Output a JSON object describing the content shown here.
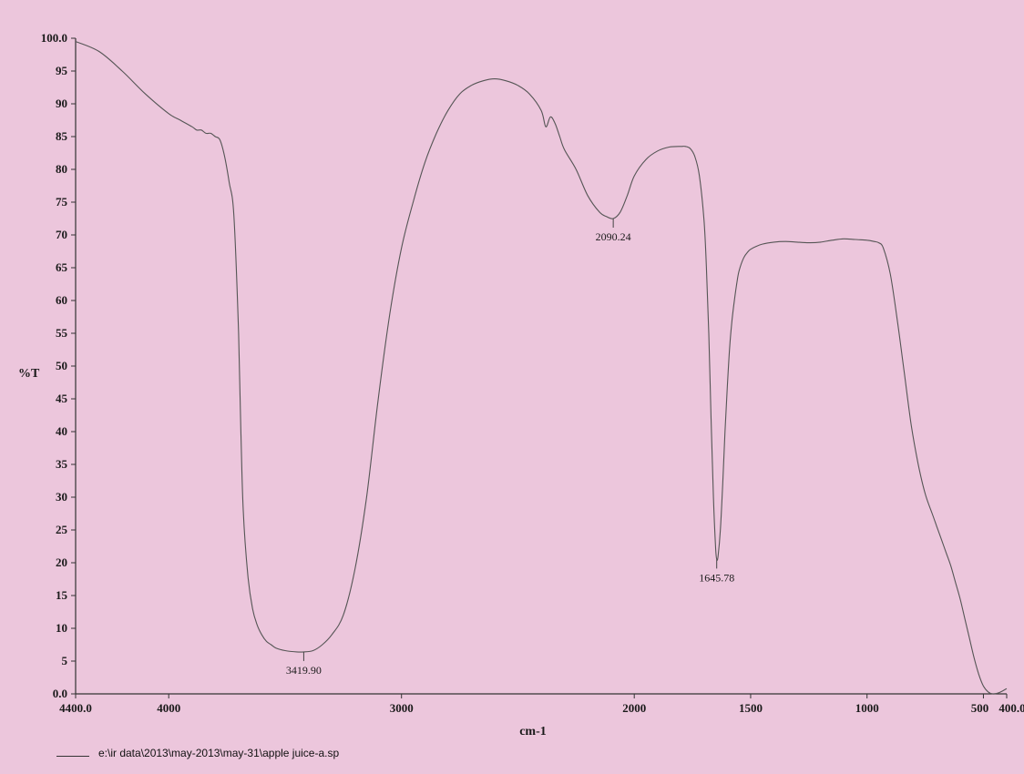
{
  "chart_data": {
    "type": "line",
    "title": "",
    "xlabel": "cm-1",
    "ylabel": "%T",
    "xlim": [
      4400.0,
      400.0
    ],
    "ylim": [
      0.0,
      100.0
    ],
    "x_reversed": true,
    "grid": false,
    "x_ticks": [
      {
        "value": 4400,
        "label": "4400.0"
      },
      {
        "value": 4000,
        "label": "4000"
      },
      {
        "value": 3000,
        "label": "3000"
      },
      {
        "value": 2000,
        "label": "2000"
      },
      {
        "value": 1500,
        "label": "1500"
      },
      {
        "value": 1000,
        "label": "1000"
      },
      {
        "value": 500,
        "label": "500"
      },
      {
        "value": 400,
        "label": "400.0"
      }
    ],
    "y_ticks": [
      {
        "value": 0,
        "label": "0.0"
      },
      {
        "value": 5,
        "label": "5"
      },
      {
        "value": 10,
        "label": "10"
      },
      {
        "value": 15,
        "label": "15"
      },
      {
        "value": 20,
        "label": "20"
      },
      {
        "value": 25,
        "label": "25"
      },
      {
        "value": 30,
        "label": "30"
      },
      {
        "value": 35,
        "label": "35"
      },
      {
        "value": 40,
        "label": "40"
      },
      {
        "value": 45,
        "label": "45"
      },
      {
        "value": 50,
        "label": "50"
      },
      {
        "value": 55,
        "label": "55"
      },
      {
        "value": 60,
        "label": "60"
      },
      {
        "value": 65,
        "label": "65"
      },
      {
        "value": 70,
        "label": "70"
      },
      {
        "value": 75,
        "label": "75"
      },
      {
        "value": 80,
        "label": "80"
      },
      {
        "value": 85,
        "label": "85"
      },
      {
        "value": 90,
        "label": "90"
      },
      {
        "value": 95,
        "label": "95"
      },
      {
        "value": 100,
        "label": "100.0"
      }
    ],
    "series": [
      {
        "color": "#555555",
        "x": [
          4400,
          4300,
          4200,
          4100,
          4000,
          3950,
          3900,
          3880,
          3860,
          3840,
          3820,
          3800,
          3780,
          3760,
          3740,
          3720,
          3700,
          3690,
          3680,
          3660,
          3640,
          3620,
          3600,
          3580,
          3560,
          3540,
          3500,
          3450,
          3420,
          3380,
          3340,
          3300,
          3250,
          3200,
          3150,
          3100,
          3050,
          3000,
          2950,
          2900,
          2850,
          2800,
          2750,
          2700,
          2650,
          2600,
          2550,
          2500,
          2450,
          2400,
          2380,
          2360,
          2340,
          2320,
          2300,
          2250,
          2200,
          2150,
          2120,
          2090,
          2060,
          2030,
          2000,
          1950,
          1900,
          1850,
          1800,
          1780,
          1760,
          1740,
          1720,
          1700,
          1690,
          1680,
          1670,
          1660,
          1650,
          1645,
          1640,
          1630,
          1620,
          1610,
          1600,
          1590,
          1580,
          1570,
          1560,
          1550,
          1530,
          1510,
          1500,
          1480,
          1450,
          1400,
          1350,
          1300,
          1250,
          1200,
          1150,
          1100,
          1050,
          1000,
          970,
          950,
          930,
          900,
          870,
          840,
          810,
          780,
          750,
          720,
          700,
          680,
          660,
          640,
          620,
          600,
          580,
          560,
          540,
          520,
          500,
          480,
          460,
          440,
          420,
          400
        ],
        "y": [
          99.5,
          98.0,
          95.0,
          91.5,
          88.5,
          87.5,
          86.5,
          86.0,
          86.0,
          85.5,
          85.5,
          85.0,
          84.5,
          82.0,
          78.0,
          73.0,
          55.0,
          40.0,
          28.0,
          18.0,
          13.0,
          10.5,
          9.0,
          8.0,
          7.5,
          7.0,
          6.6,
          6.4,
          6.4,
          6.6,
          7.5,
          9.0,
          12.0,
          19.0,
          30.0,
          45.0,
          58.0,
          68.0,
          75.0,
          81.0,
          85.5,
          89.0,
          91.5,
          92.8,
          93.5,
          93.8,
          93.5,
          92.8,
          91.5,
          89.0,
          86.5,
          88.0,
          87.0,
          85.0,
          83.0,
          80.0,
          76.0,
          73.5,
          72.8,
          72.5,
          73.5,
          76.0,
          79.0,
          81.5,
          82.8,
          83.4,
          83.5,
          83.5,
          83.2,
          82.0,
          79.0,
          72.0,
          65.0,
          55.0,
          42.0,
          30.0,
          22.0,
          20.5,
          21.0,
          25.0,
          32.0,
          40.0,
          47.0,
          53.0,
          57.0,
          60.0,
          62.5,
          64.5,
          66.5,
          67.5,
          67.8,
          68.2,
          68.6,
          68.9,
          69.0,
          68.9,
          68.8,
          68.9,
          69.2,
          69.4,
          69.3,
          69.2,
          69.0,
          68.8,
          68.0,
          64.0,
          57.0,
          49.0,
          41.0,
          35.0,
          30.5,
          27.5,
          25.5,
          23.5,
          21.5,
          19.5,
          17.0,
          14.5,
          11.5,
          8.5,
          5.5,
          3.0,
          1.2,
          0.3,
          0.0,
          0.1,
          0.4,
          0.8
        ]
      }
    ],
    "peak_annotations": [
      {
        "x": 3419.9,
        "y": 6.4,
        "label": "3419.90"
      },
      {
        "x": 2090.24,
        "y": 72.5,
        "label": "2090.24"
      },
      {
        "x": 1645.78,
        "y": 20.5,
        "label": "1645.78"
      }
    ]
  },
  "legend": {
    "file_label": "e:\\ir data\\2013\\may-2013\\may-31\\apple juice-a.sp"
  }
}
